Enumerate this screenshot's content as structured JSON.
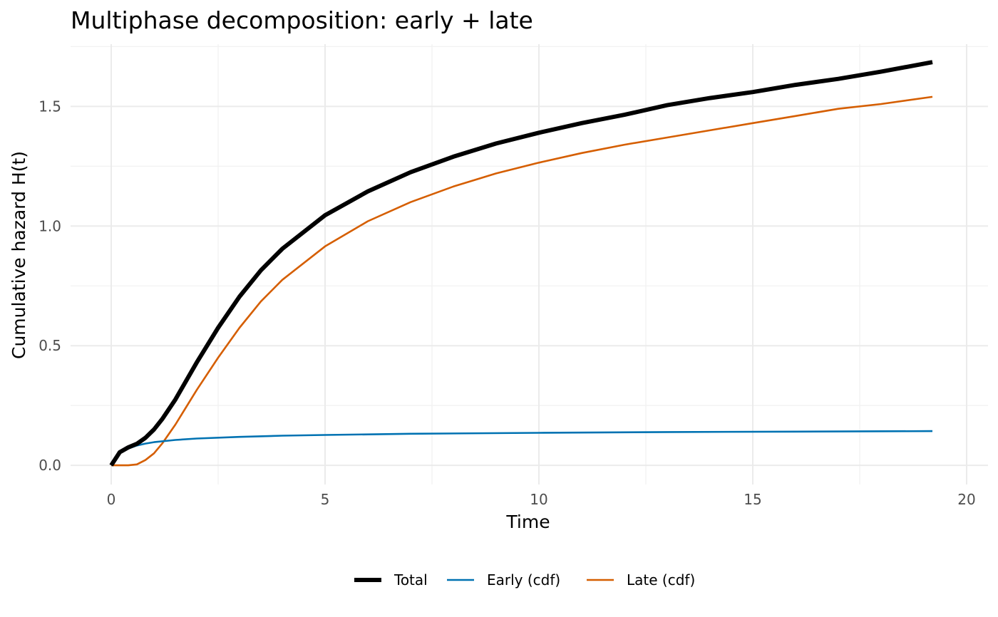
{
  "chart_data": {
    "type": "line",
    "title": "Multiphase decomposition: early + late",
    "xlabel": "Time",
    "ylabel": "Cumulative hazard H(t)",
    "xlim": [
      -0.95,
      20.5
    ],
    "ylim": [
      -0.08,
      1.76
    ],
    "x_ticks": [
      0,
      5,
      10,
      15,
      20
    ],
    "x_tick_labels": [
      "0",
      "5",
      "10",
      "15",
      "20"
    ],
    "y_ticks": [
      0.0,
      0.5,
      1.0,
      1.5
    ],
    "y_tick_labels": [
      "0.0",
      "0.5",
      "1.0",
      "1.5"
    ],
    "grid": true,
    "legend_position": "bottom",
    "series": [
      {
        "name": "Total",
        "color": "#000000",
        "x": [
          0,
          0.2,
          0.4,
          0.6,
          0.8,
          1.0,
          1.2,
          1.5,
          2.0,
          2.5,
          3.0,
          3.5,
          4.0,
          5.0,
          6.0,
          7.0,
          8.0,
          9.0,
          10.0,
          11.0,
          12.0,
          13.0,
          14.0,
          15.0,
          16.0,
          17.0,
          18.0,
          19.2
        ],
        "y": [
          0.0,
          0.055,
          0.075,
          0.09,
          0.115,
          0.15,
          0.195,
          0.275,
          0.43,
          0.575,
          0.705,
          0.815,
          0.905,
          1.045,
          1.145,
          1.225,
          1.29,
          1.345,
          1.39,
          1.43,
          1.465,
          1.505,
          1.535,
          1.56,
          1.59,
          1.615,
          1.645,
          1.685
        ]
      },
      {
        "name": "Early (cdf)",
        "color": "#0072B2",
        "x": [
          0,
          0.2,
          0.4,
          0.6,
          0.8,
          1.0,
          1.5,
          2.0,
          3.0,
          4.0,
          5.0,
          7.0,
          10.0,
          13.0,
          16.0,
          19.2
        ],
        "y": [
          0.0,
          0.05,
          0.07,
          0.083,
          0.091,
          0.097,
          0.106,
          0.112,
          0.119,
          0.124,
          0.127,
          0.132,
          0.136,
          0.139,
          0.141,
          0.143
        ]
      },
      {
        "name": "Late (cdf)",
        "color": "#D55E00",
        "x": [
          0,
          0.2,
          0.4,
          0.6,
          0.8,
          1.0,
          1.2,
          1.5,
          2.0,
          2.5,
          3.0,
          3.5,
          4.0,
          5.0,
          6.0,
          7.0,
          8.0,
          9.0,
          10.0,
          11.0,
          12.0,
          13.0,
          14.0,
          15.0,
          16.0,
          17.0,
          18.0,
          19.2
        ],
        "y": [
          0.0,
          0.0,
          0.0,
          0.004,
          0.022,
          0.05,
          0.093,
          0.17,
          0.315,
          0.45,
          0.575,
          0.685,
          0.775,
          0.915,
          1.02,
          1.1,
          1.165,
          1.22,
          1.265,
          1.305,
          1.34,
          1.37,
          1.4,
          1.43,
          1.46,
          1.49,
          1.51,
          1.54
        ]
      }
    ]
  }
}
